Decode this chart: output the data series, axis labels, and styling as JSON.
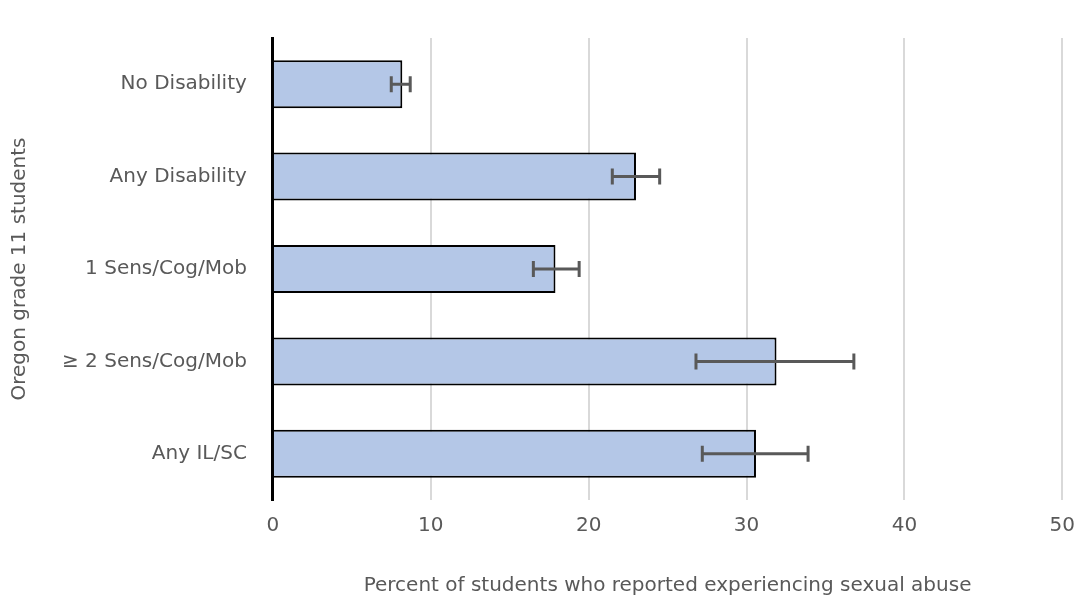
{
  "chart_data": {
    "type": "bar",
    "orientation": "horizontal",
    "categories": [
      "No Disability",
      "Any Disability",
      "1 Sens/Cog/Mob",
      "≥ 2 Sens/Cog/Mob",
      "Any IL/SC"
    ],
    "values": [
      8.2,
      23.0,
      17.9,
      31.9,
      30.6
    ],
    "errors": [
      [
        7.5,
        8.7
      ],
      [
        21.5,
        24.5
      ],
      [
        16.5,
        19.4
      ],
      [
        26.8,
        36.8
      ],
      [
        27.2,
        33.9
      ]
    ],
    "color": "#b4c7e7",
    "xlim": [
      0,
      50
    ],
    "xticks": [
      0,
      10,
      20,
      30,
      40,
      50
    ],
    "xlabel": "Percent of students who reported experiencing sexual abuse",
    "ylabel": "Oregon grade 11 students",
    "grid": "x",
    "legend": false
  }
}
